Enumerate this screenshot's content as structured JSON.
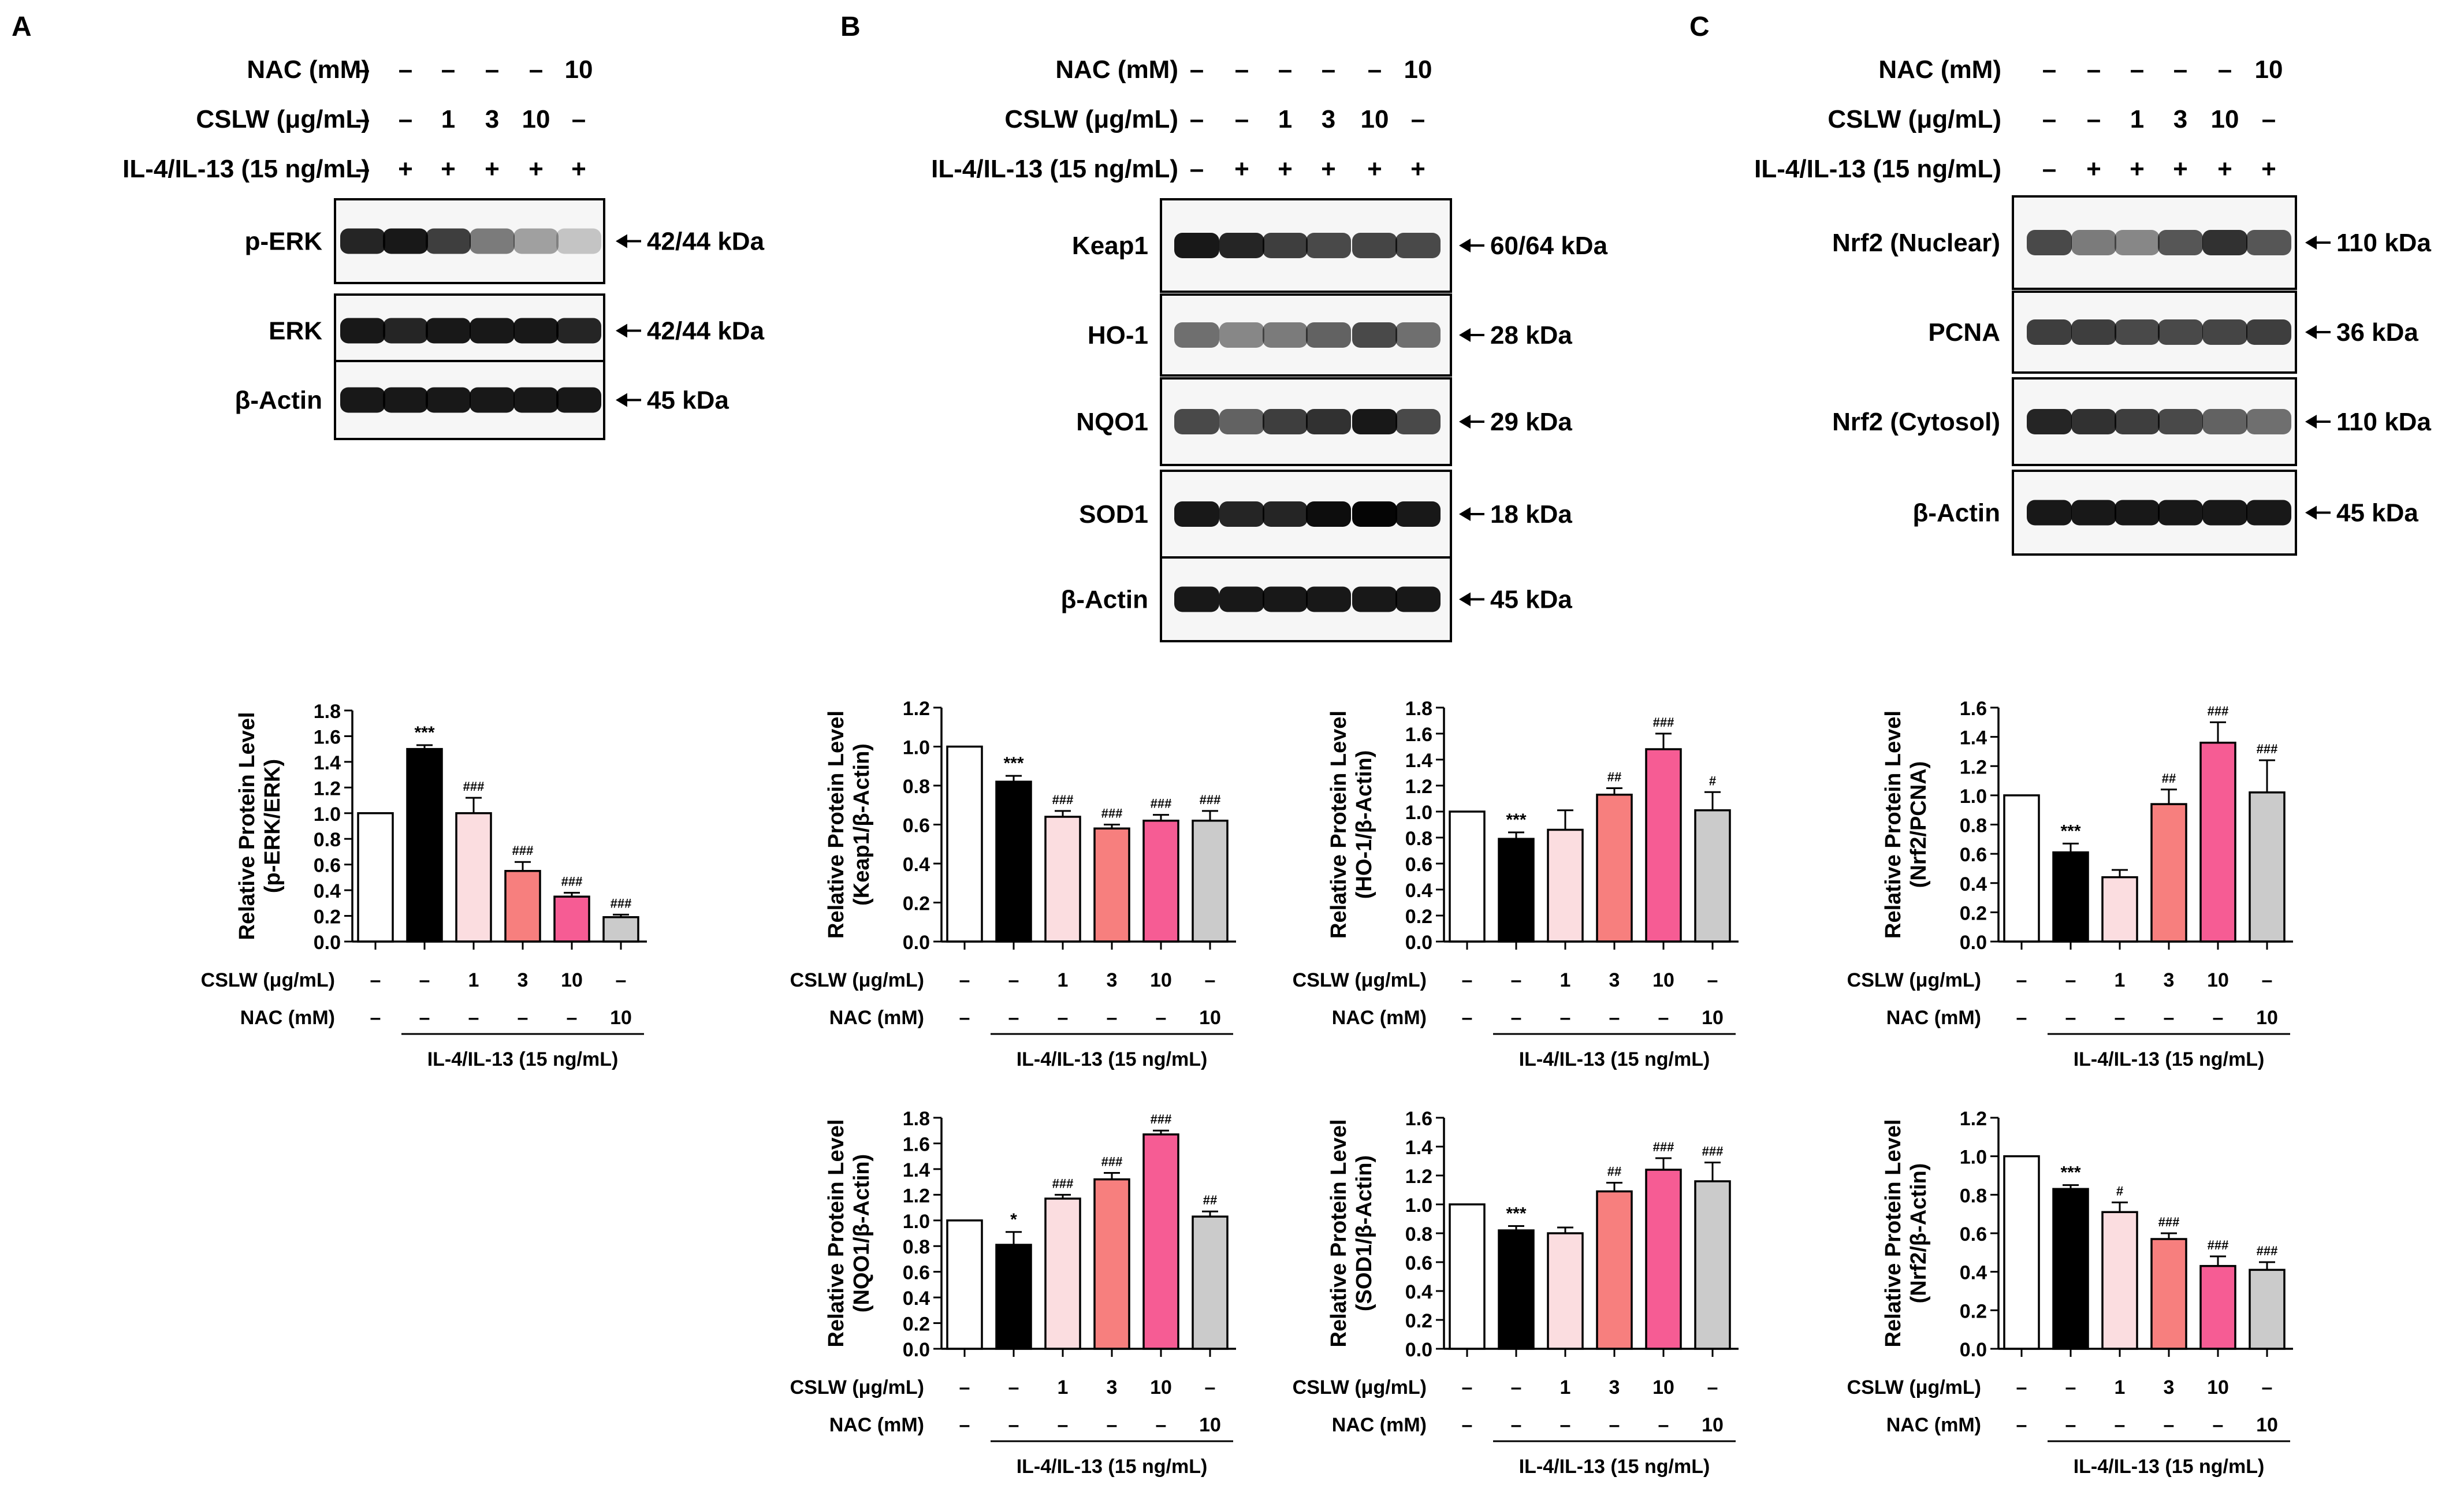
{
  "panels": [
    {
      "letter": "A",
      "treatment_rows": [
        {
          "label": "NAC (mM)",
          "cells": [
            "–",
            "–",
            "–",
            "–",
            "–",
            "10"
          ]
        },
        {
          "label": "CSLW (μg/mL)",
          "cells": [
            "–",
            "–",
            "1",
            "3",
            "10",
            "–"
          ]
        },
        {
          "label": "IL-4/IL-13 (15 ng/mL)",
          "cells": [
            "–",
            "+",
            "+",
            "+",
            "+",
            "+"
          ]
        }
      ],
      "blots": [
        {
          "label": "p-ERK",
          "size": "42/44 kDa",
          "bands": [
            0.85,
            0.9,
            0.75,
            0.5,
            0.35,
            0.2
          ]
        },
        {
          "label": "ERK",
          "size": "42/44 kDa",
          "bands": [
            0.9,
            0.85,
            0.9,
            0.9,
            0.9,
            0.85
          ]
        },
        {
          "label": "β-Actin",
          "size": "45 kDa",
          "bands": [
            0.9,
            0.9,
            0.9,
            0.9,
            0.9,
            0.9
          ]
        }
      ]
    },
    {
      "letter": "B",
      "treatment_rows": [
        {
          "label": "NAC (mM)",
          "cells": [
            "–",
            "–",
            "–",
            "–",
            "–",
            "10"
          ]
        },
        {
          "label": "CSLW (μg/mL)",
          "cells": [
            "–",
            "–",
            "1",
            "3",
            "10",
            "–"
          ]
        },
        {
          "label": "IL-4/IL-13 (15 ng/mL)",
          "cells": [
            "–",
            "+",
            "+",
            "+",
            "+",
            "+"
          ]
        }
      ],
      "blots": [
        {
          "label": "Keap1",
          "size": "60/64 kDa",
          "bands": [
            0.9,
            0.85,
            0.75,
            0.7,
            0.72,
            0.7
          ]
        },
        {
          "label": "HO-1",
          "size": "28 kDa",
          "bands": [
            0.55,
            0.45,
            0.5,
            0.6,
            0.7,
            0.55
          ]
        },
        {
          "label": "NQO1",
          "size": "29 kDa",
          "bands": [
            0.7,
            0.6,
            0.75,
            0.8,
            0.9,
            0.7
          ]
        },
        {
          "label": "SOD1",
          "size": "18 kDa",
          "bands": [
            0.9,
            0.85,
            0.85,
            0.95,
            0.98,
            0.9
          ]
        },
        {
          "label": "β-Actin",
          "size": "45 kDa",
          "bands": [
            0.9,
            0.9,
            0.9,
            0.9,
            0.9,
            0.9
          ]
        }
      ]
    },
    {
      "letter": "C",
      "treatment_rows": [
        {
          "label": "NAC (mM)",
          "cells": [
            "–",
            "–",
            "–",
            "–",
            "–",
            "10"
          ]
        },
        {
          "label": "CSLW (μg/mL)",
          "cells": [
            "–",
            "–",
            "1",
            "3",
            "10",
            "–"
          ]
        },
        {
          "label": "IL-4/IL-13 (15 ng/mL)",
          "cells": [
            "–",
            "+",
            "+",
            "+",
            "+",
            "+"
          ]
        }
      ],
      "blots": [
        {
          "label": "Nrf2 (Nuclear)",
          "size": "110 kDa",
          "bands": [
            0.7,
            0.5,
            0.45,
            0.65,
            0.8,
            0.65
          ]
        },
        {
          "label": "PCNA",
          "size": "36 kDa",
          "bands": [
            0.75,
            0.75,
            0.7,
            0.7,
            0.72,
            0.75
          ]
        },
        {
          "label": "Nrf2 (Cytosol)",
          "size": "110 kDa",
          "bands": [
            0.85,
            0.8,
            0.75,
            0.7,
            0.6,
            0.55
          ]
        },
        {
          "label": "β-Actin",
          "size": "45 kDa",
          "bands": [
            0.9,
            0.9,
            0.9,
            0.9,
            0.9,
            0.9
          ]
        }
      ]
    }
  ],
  "colors": [
    "#ffffff",
    "#000000",
    "#fbdde0",
    "#f77f7e",
    "#f65c94",
    "#cbcbcb"
  ],
  "chart_data": [
    {
      "type": "bar",
      "panel": "A",
      "ylabel": "Relative Protein Level\n(p-ERK/ERK)",
      "ylim": [
        0,
        1.8
      ],
      "yticks": [
        "0.0",
        "0.2",
        "0.4",
        "0.6",
        "0.8",
        "1.0",
        "1.2",
        "1.4",
        "1.6",
        "1.8"
      ],
      "values": [
        1.0,
        1.5,
        1.0,
        0.55,
        0.35,
        0.19
      ],
      "errors": [
        0.0,
        0.03,
        0.12,
        0.07,
        0.03,
        0.02
      ],
      "sig": [
        "",
        "***",
        "###",
        "###",
        "###",
        "###"
      ],
      "treatment_rows": [
        {
          "label": "CSLW (μg/mL)",
          "cells": [
            "–",
            "–",
            "1",
            "3",
            "10",
            "–"
          ]
        },
        {
          "label": "NAC (mM)",
          "cells": [
            "–",
            "–",
            "–",
            "–",
            "–",
            "10"
          ]
        }
      ],
      "group_label": "IL-4/IL-13 (15 ng/mL)"
    },
    {
      "type": "bar",
      "panel": "B",
      "ylabel": "Relative Protein Level\n(Keap1/β-Actin)",
      "ylim": [
        0,
        1.2
      ],
      "yticks": [
        "0.0",
        "0.2",
        "0.4",
        "0.6",
        "0.8",
        "1.0",
        "1.2"
      ],
      "values": [
        1.0,
        0.82,
        0.64,
        0.58,
        0.62,
        0.62
      ],
      "errors": [
        0.0,
        0.03,
        0.03,
        0.02,
        0.03,
        0.05
      ],
      "sig": [
        "",
        "***",
        "###",
        "###",
        "###",
        "###"
      ],
      "treatment_rows": [
        {
          "label": "CSLW (μg/mL)",
          "cells": [
            "–",
            "–",
            "1",
            "3",
            "10",
            "–"
          ]
        },
        {
          "label": "NAC (mM)",
          "cells": [
            "–",
            "–",
            "–",
            "–",
            "–",
            "10"
          ]
        }
      ],
      "group_label": "IL-4/IL-13 (15 ng/mL)"
    },
    {
      "type": "bar",
      "panel": "B",
      "ylabel": "Relative Protein Level\n(HO-1/β-Actin)",
      "ylim": [
        0,
        1.8
      ],
      "yticks": [
        "0.0",
        "0.2",
        "0.4",
        "0.6",
        "0.8",
        "1.0",
        "1.2",
        "1.4",
        "1.6",
        "1.8"
      ],
      "values": [
        1.0,
        0.79,
        0.86,
        1.13,
        1.48,
        1.01
      ],
      "errors": [
        0.0,
        0.05,
        0.15,
        0.05,
        0.12,
        0.14
      ],
      "sig": [
        "",
        "***",
        "",
        "##",
        "###",
        "#"
      ],
      "treatment_rows": [
        {
          "label": "CSLW (μg/mL)",
          "cells": [
            "–",
            "–",
            "1",
            "3",
            "10",
            "–"
          ]
        },
        {
          "label": "NAC (mM)",
          "cells": [
            "–",
            "–",
            "–",
            "–",
            "–",
            "10"
          ]
        }
      ],
      "group_label": "IL-4/IL-13 (15 ng/mL)"
    },
    {
      "type": "bar",
      "panel": "B",
      "ylabel": "Relative Protein Level\n(NQO1/β-Actin)",
      "ylim": [
        0,
        1.8
      ],
      "yticks": [
        "0.0",
        "0.2",
        "0.4",
        "0.6",
        "0.8",
        "1.0",
        "1.2",
        "1.4",
        "1.6",
        "1.8"
      ],
      "values": [
        1.0,
        0.81,
        1.17,
        1.32,
        1.67,
        1.03
      ],
      "errors": [
        0.0,
        0.1,
        0.03,
        0.05,
        0.03,
        0.04
      ],
      "sig": [
        "",
        "*",
        "###",
        "###",
        "###",
        "##"
      ],
      "treatment_rows": [
        {
          "label": "CSLW (μg/mL)",
          "cells": [
            "–",
            "–",
            "1",
            "3",
            "10",
            "–"
          ]
        },
        {
          "label": "NAC (mM)",
          "cells": [
            "–",
            "–",
            "–",
            "–",
            "–",
            "10"
          ]
        }
      ],
      "group_label": "IL-4/IL-13 (15 ng/mL)"
    },
    {
      "type": "bar",
      "panel": "B",
      "ylabel": "Relative Protein Level\n(SOD1/β-Actin)",
      "ylim": [
        0,
        1.6
      ],
      "yticks": [
        "0.0",
        "0.2",
        "0.4",
        "0.6",
        "0.8",
        "1.0",
        "1.2",
        "1.4",
        "1.6"
      ],
      "values": [
        1.0,
        0.82,
        0.8,
        1.09,
        1.24,
        1.16
      ],
      "errors": [
        0.0,
        0.03,
        0.04,
        0.06,
        0.08,
        0.13
      ],
      "sig": [
        "",
        "***",
        "",
        "##",
        "###",
        "###"
      ],
      "treatment_rows": [
        {
          "label": "CSLW (μg/mL)",
          "cells": [
            "–",
            "–",
            "1",
            "3",
            "10",
            "–"
          ]
        },
        {
          "label": "NAC (mM)",
          "cells": [
            "–",
            "–",
            "–",
            "–",
            "–",
            "10"
          ]
        }
      ],
      "group_label": "IL-4/IL-13 (15 ng/mL)"
    },
    {
      "type": "bar",
      "panel": "C",
      "ylabel": "Relative Protein Level\n(Nrf2/PCNA)",
      "ylim": [
        0,
        1.6
      ],
      "yticks": [
        "0.0",
        "0.2",
        "0.4",
        "0.6",
        "0.8",
        "1.0",
        "1.2",
        "1.4",
        "1.6"
      ],
      "values": [
        1.0,
        0.61,
        0.44,
        0.94,
        1.36,
        1.02
      ],
      "errors": [
        0.0,
        0.06,
        0.05,
        0.1,
        0.14,
        0.22
      ],
      "sig": [
        "",
        "***",
        "",
        "##",
        "###",
        "###"
      ],
      "treatment_rows": [
        {
          "label": "CSLW (μg/mL)",
          "cells": [
            "–",
            "–",
            "1",
            "3",
            "10",
            "–"
          ]
        },
        {
          "label": "NAC (mM)",
          "cells": [
            "–",
            "–",
            "–",
            "–",
            "–",
            "10"
          ]
        }
      ],
      "group_label": "IL-4/IL-13 (15 ng/mL)"
    },
    {
      "type": "bar",
      "panel": "C",
      "ylabel": "Relative Protein Level\n(Nrf2/β-Actin)",
      "ylim": [
        0,
        1.2
      ],
      "yticks": [
        "0.0",
        "0.2",
        "0.4",
        "0.6",
        "0.8",
        "1.0",
        "1.2"
      ],
      "values": [
        1.0,
        0.83,
        0.71,
        0.57,
        0.43,
        0.41
      ],
      "errors": [
        0.0,
        0.02,
        0.05,
        0.03,
        0.05,
        0.04
      ],
      "sig": [
        "",
        "***",
        "#",
        "###",
        "###",
        "###"
      ],
      "treatment_rows": [
        {
          "label": "CSLW (μg/mL)",
          "cells": [
            "–",
            "–",
            "1",
            "3",
            "10",
            "–"
          ]
        },
        {
          "label": "NAC (mM)",
          "cells": [
            "–",
            "–",
            "–",
            "–",
            "–",
            "10"
          ]
        }
      ],
      "group_label": "IL-4/IL-13 (15 ng/mL)"
    }
  ]
}
